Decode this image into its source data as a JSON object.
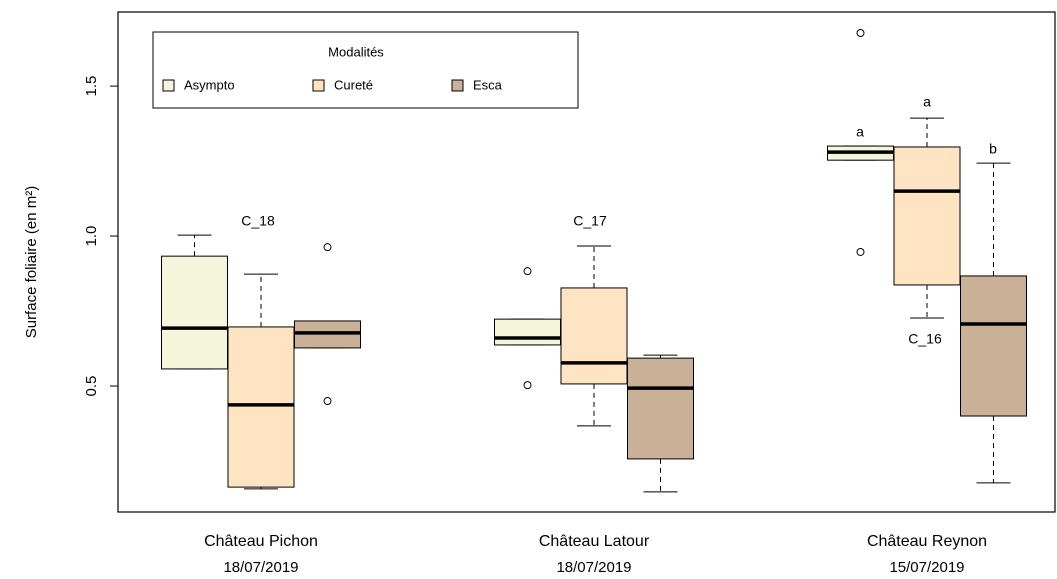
{
  "chart_data": {
    "type": "boxplot",
    "ylabel": "Surface foliaire (en m²)",
    "categories": [
      "Château Pichon",
      "Château Latour",
      "Château Reynon"
    ],
    "dates": [
      "18/07/2019",
      "18/07/2019",
      "15/07/2019"
    ],
    "legend_title": "Modalités",
    "legend": "top-left",
    "ylim": [
      0.08,
      1.747
    ],
    "yticks": [
      0.5,
      {
        "value": 1,
        "label": "1.0"
      },
      1.5
    ],
    "series": [
      {
        "name": "Asympto",
        "color": "#f5f5dc",
        "values": [
          {
            "min": 0.557,
            "q1": 0.557,
            "median": 0.693,
            "q3": 0.933,
            "max": 1.003,
            "outliers": []
          },
          {
            "min": 0.637,
            "q1": 0.637,
            "median": 0.66,
            "q3": 0.723,
            "max": 0.723,
            "outliers": [
              0.883,
              0.503
            ]
          },
          {
            "min": 1.253,
            "q1": 1.253,
            "median": 1.28,
            "q3": 1.3,
            "max": 1.3,
            "outliers": [
              1.677,
              0.947
            ]
          }
        ]
      },
      {
        "name": "Cureté",
        "color": "#ffe4c4",
        "values": [
          {
            "min": 0.157,
            "q1": 0.163,
            "median": 0.437,
            "q3": 0.697,
            "max": 0.873,
            "outliers": []
          },
          {
            "min": 0.367,
            "q1": 0.507,
            "median": 0.577,
            "q3": 0.827,
            "max": 0.967,
            "outliers": []
          },
          {
            "min": 0.727,
            "q1": 0.837,
            "median": 1.15,
            "q3": 1.297,
            "max": 1.393,
            "outliers": []
          }
        ]
      },
      {
        "name": "Esca",
        "color": "#c9b096",
        "values": [
          {
            "min": 0.627,
            "q1": 0.627,
            "median": 0.677,
            "q3": 0.717,
            "max": 0.717,
            "outliers": [
              0.963,
              0.45
            ]
          },
          {
            "min": 0.147,
            "q1": 0.257,
            "median": 0.493,
            "q3": 0.593,
            "max": 0.603,
            "outliers": []
          },
          {
            "min": 0.177,
            "q1": 0.4,
            "median": 0.707,
            "q3": 0.867,
            "max": 1.243,
            "outliers": []
          }
        ]
      }
    ],
    "annotations": [
      "C_18",
      "C_17",
      "C_16",
      "a",
      "a",
      "b"
    ]
  }
}
